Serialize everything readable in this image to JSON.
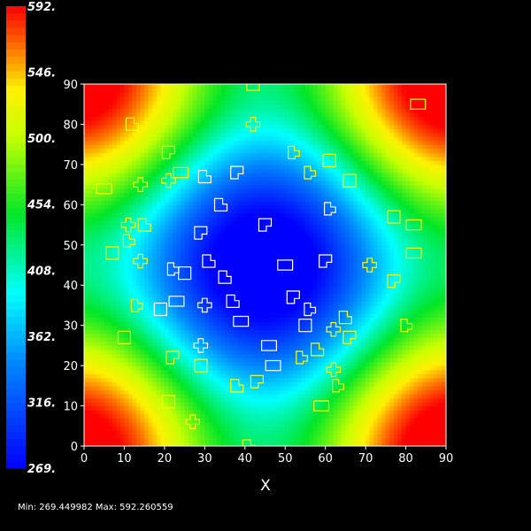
{
  "chart_data": {
    "type": "heatmap",
    "xlabel": "X",
    "ylabel": "",
    "xlim": [
      0,
      90
    ],
    "ylim": [
      0,
      90
    ],
    "x_ticks": [
      "0",
      "10",
      "20",
      "30",
      "40",
      "50",
      "60",
      "70",
      "80",
      "90"
    ],
    "y_ticks": [
      "0",
      "10",
      "20",
      "30",
      "40",
      "50",
      "60",
      "70",
      "80",
      "90"
    ],
    "colorbar": {
      "min": 269.0,
      "max": 592.0,
      "labels": [
        "592.",
        "546.",
        "500.",
        "454.",
        "408.",
        "362.",
        "316.",
        "269."
      ]
    },
    "summary": "Min: 269.449982 Max: 592.260559",
    "colormap": "rainbow (blue low, red high)",
    "field_description": "Value minimal near center (~40,45), rising to ~592 at the four corners",
    "outline_colors": {
      "inner": "#ffffff",
      "outer": "#ffff00"
    },
    "outlines": [
      [
        42,
        90
      ],
      [
        83,
        85
      ],
      [
        42,
        80
      ],
      [
        12,
        80
      ],
      [
        21,
        73
      ],
      [
        52,
        73
      ],
      [
        61,
        71
      ],
      [
        24,
        68
      ],
      [
        21,
        66
      ],
      [
        30,
        67
      ],
      [
        38,
        68
      ],
      [
        56,
        68
      ],
      [
        66,
        66
      ],
      [
        5,
        64
      ],
      [
        14,
        65
      ],
      [
        34,
        60
      ],
      [
        45,
        55
      ],
      [
        61,
        59
      ],
      [
        77,
        57
      ],
      [
        82,
        55
      ],
      [
        11,
        55
      ],
      [
        15,
        55
      ],
      [
        29,
        53
      ],
      [
        11,
        51
      ],
      [
        7,
        48
      ],
      [
        82,
        48
      ],
      [
        14,
        46
      ],
      [
        31,
        46
      ],
      [
        60,
        46
      ],
      [
        22,
        44
      ],
      [
        25,
        43
      ],
      [
        50,
        45
      ],
      [
        71,
        45
      ],
      [
        35,
        42
      ],
      [
        77,
        41
      ],
      [
        13,
        35
      ],
      [
        19,
        34
      ],
      [
        23,
        36
      ],
      [
        30,
        35
      ],
      [
        37,
        36
      ],
      [
        52,
        37
      ],
      [
        56,
        34
      ],
      [
        55,
        30
      ],
      [
        39,
        31
      ],
      [
        62,
        29
      ],
      [
        65,
        32
      ],
      [
        66,
        27
      ],
      [
        80,
        30
      ],
      [
        10,
        27
      ],
      [
        46,
        25
      ],
      [
        29,
        25
      ],
      [
        58,
        24
      ],
      [
        22,
        22
      ],
      [
        54,
        22
      ],
      [
        29,
        20
      ],
      [
        47,
        20
      ],
      [
        62,
        19
      ],
      [
        38,
        15
      ],
      [
        43,
        16
      ],
      [
        63,
        15
      ],
      [
        21,
        11
      ],
      [
        59,
        10
      ],
      [
        27,
        6
      ],
      [
        41,
        0
      ]
    ]
  },
  "footer": {
    "minmax_text": "Min: 269.449982 Max: 592.260559"
  }
}
